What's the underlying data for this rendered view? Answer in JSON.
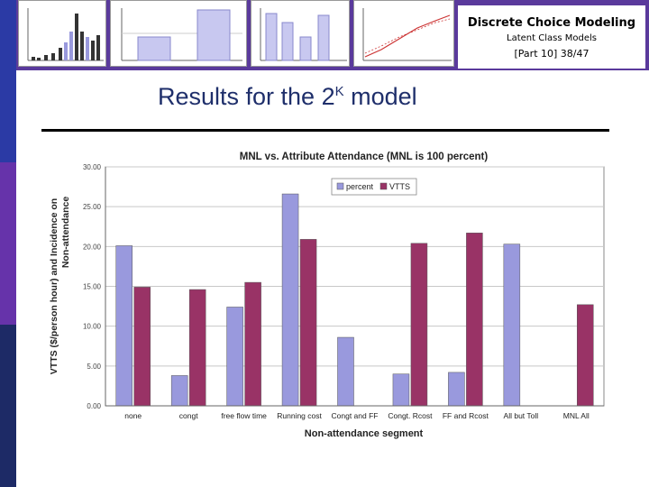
{
  "header": {
    "title": "Discrete Choice Modeling",
    "subtitle": "Latent Class Models",
    "page": "[Part 10]   38/47"
  },
  "slide": {
    "title_main": "Results for the 2",
    "title_sup": "K",
    "title_tail": " model"
  },
  "colors": {
    "top_band": "#5a3a9c",
    "percent": "#9999dd",
    "vtts": "#993366",
    "title": "#1f2f6b"
  },
  "chart_data": {
    "type": "bar",
    "title": "MNL vs. Attribute Attendance (MNL is 100 percent)",
    "xlabel": "Non-attendance segment",
    "ylabel_line1": "VTTS ($/person hour) and Incidence on",
    "ylabel_line2": "Non-attendance",
    "ylim": [
      0,
      30
    ],
    "yticks": [
      "0.00",
      "5.00",
      "10.00",
      "15.00",
      "20.00",
      "25.00",
      "30.00"
    ],
    "legend_position": "top-right",
    "categories": [
      "none",
      "congt",
      "free flow time",
      "Running cost",
      "Congt and FF",
      "Congt. Rcost",
      "FF and Rcost",
      "All but Toll",
      "MNL All"
    ],
    "series": [
      {
        "name": "percent",
        "values": [
          20.1,
          3.8,
          12.4,
          26.6,
          8.6,
          4.0,
          4.2,
          20.3,
          null
        ]
      },
      {
        "name": "VTTS",
        "values": [
          14.9,
          14.6,
          15.5,
          20.9,
          null,
          20.4,
          21.7,
          null,
          12.7
        ]
      }
    ]
  }
}
